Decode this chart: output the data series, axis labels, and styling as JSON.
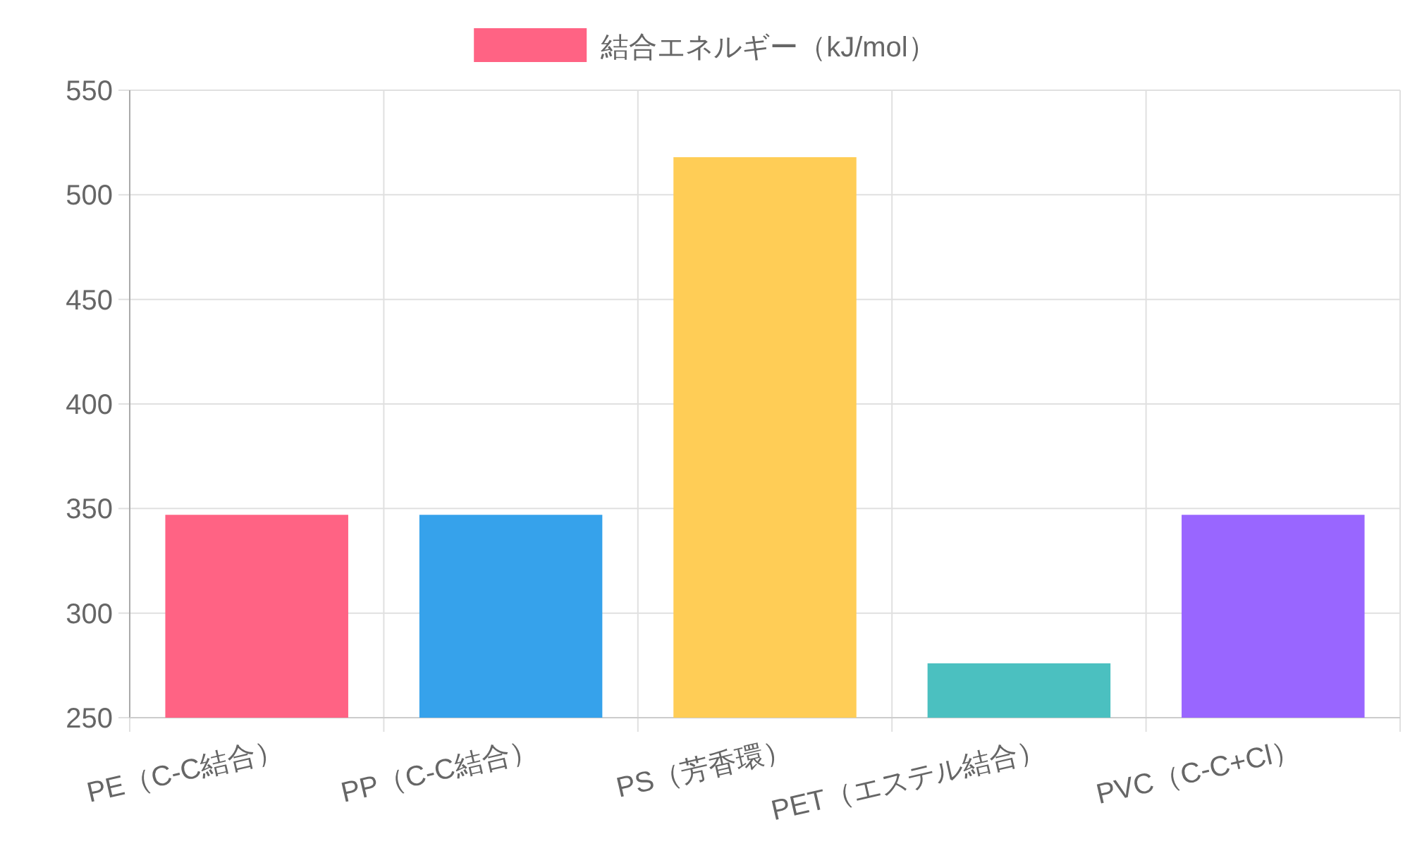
{
  "chart_data": {
    "type": "bar",
    "categories": [
      "PE（C-C結合）",
      "PP（C-C結合）",
      "PS（芳香環）",
      "PET（エステル結合）",
      "PVC（C-C+Cl）"
    ],
    "series": [
      {
        "name": "結合エネルギー（kJ/mol）",
        "color": "#ff6384",
        "colors": [
          "#ff6384",
          "#36a2eb",
          "#ffcd56",
          "#4bc0c0",
          "#9966ff"
        ],
        "values": [
          347,
          347,
          518,
          276,
          347
        ]
      }
    ],
    "ylim": [
      250,
      550
    ],
    "yticks": [
      250,
      300,
      350,
      400,
      450,
      500,
      550
    ],
    "grid": true,
    "legend": "top"
  }
}
